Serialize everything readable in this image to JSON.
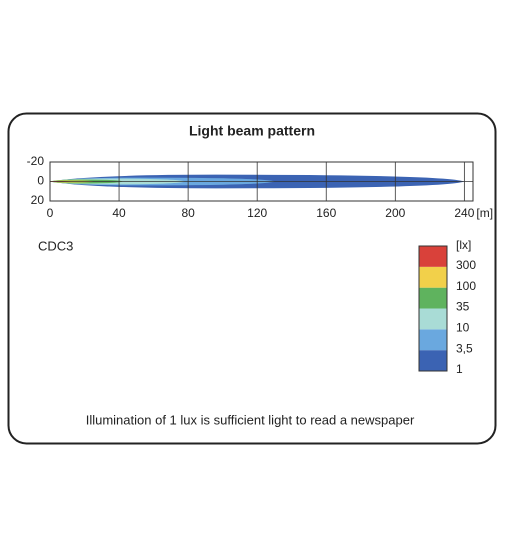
{
  "chart_data": {
    "type": "beam",
    "title": "Light beam pattern",
    "lamp": "CDC3",
    "footnote": "Illumination of 1 lux is sufficient light to read a newspaper",
    "xlabel": "[m]",
    "xlim": [
      0,
      245
    ],
    "xticks": [
      0,
      40,
      80,
      120,
      160,
      200,
      240
    ],
    "ylim": [
      -20,
      20
    ],
    "yticks": [
      -20,
      0,
      20
    ],
    "grid": true,
    "legend_title": "[lx]",
    "levels": [
      {
        "label": "1",
        "value": 1,
        "color": "#3b63b3",
        "reach": 240,
        "half_width": 7
      },
      {
        "label": "3,5",
        "value": 3.5,
        "color": "#6aa8df",
        "reach": 130,
        "half_width": 4
      },
      {
        "label": "10",
        "value": 10,
        "color": "#a9dcd6",
        "reach": 78,
        "half_width": 3
      },
      {
        "label": "35",
        "value": 35,
        "color": "#5fb35e",
        "reach": 42,
        "half_width": 2
      },
      {
        "label": "100",
        "value": 100,
        "color": "#f2d04a",
        "reach": 25,
        "half_width": 1
      },
      {
        "label": "300",
        "value": 300,
        "color": "#d9413a",
        "reach": 12,
        "half_width": 0.5
      }
    ]
  }
}
